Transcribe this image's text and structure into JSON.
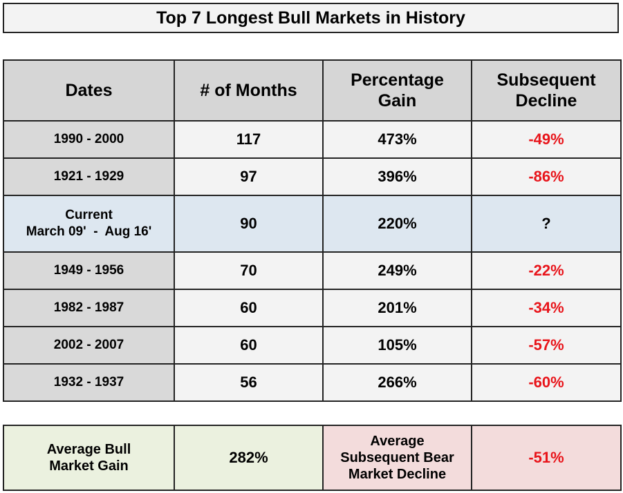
{
  "title": "Top 7 Longest Bull Markets in History",
  "chart_data": {
    "type": "table",
    "title": "Top 7 Longest Bull Markets in History",
    "columns": [
      "Dates",
      "# of Months",
      "Percentage Gain",
      "Subsequent Decline"
    ],
    "rows": [
      {
        "dates": "1990 - 2000",
        "months": "117",
        "gain": "473%",
        "decline": "-49%"
      },
      {
        "dates": "1921 - 1929",
        "months": "97",
        "gain": "396%",
        "decline": "-86%"
      },
      {
        "dates_line1": "Current",
        "dates_line2": "March 09'  -  Aug 16'",
        "months": "90",
        "gain": "220%",
        "decline": "?"
      },
      {
        "dates": "1949 - 1956",
        "months": "70",
        "gain": "249%",
        "decline": "-22%"
      },
      {
        "dates": "1982 - 1987",
        "months": "60",
        "gain": "201%",
        "decline": "-34%"
      },
      {
        "dates": "2002 - 2007",
        "months": "60",
        "gain": "105%",
        "decline": "-57%"
      },
      {
        "dates": "1932 - 1937",
        "months": "56",
        "gain": "266%",
        "decline": "-60%"
      }
    ],
    "header_lines": {
      "gain_1": "Percentage",
      "gain_2": "Gain",
      "decline_1": "Subsequent",
      "decline_2": "Decline"
    },
    "summary": {
      "gain_label_1": "Average Bull",
      "gain_label_2": "Market Gain",
      "gain_value": "282%",
      "decline_label_1": "Average",
      "decline_label_2": "Subsequent Bear",
      "decline_label_3": "Market Decline",
      "decline_value": "-51%"
    },
    "colors": {
      "negative": "#e8141a",
      "header_bg": "#d6d6d6",
      "current_row_bg": "#dde7f0",
      "summary_gain_bg": "#ebf1df",
      "summary_decline_bg": "#f3dcdc"
    }
  }
}
